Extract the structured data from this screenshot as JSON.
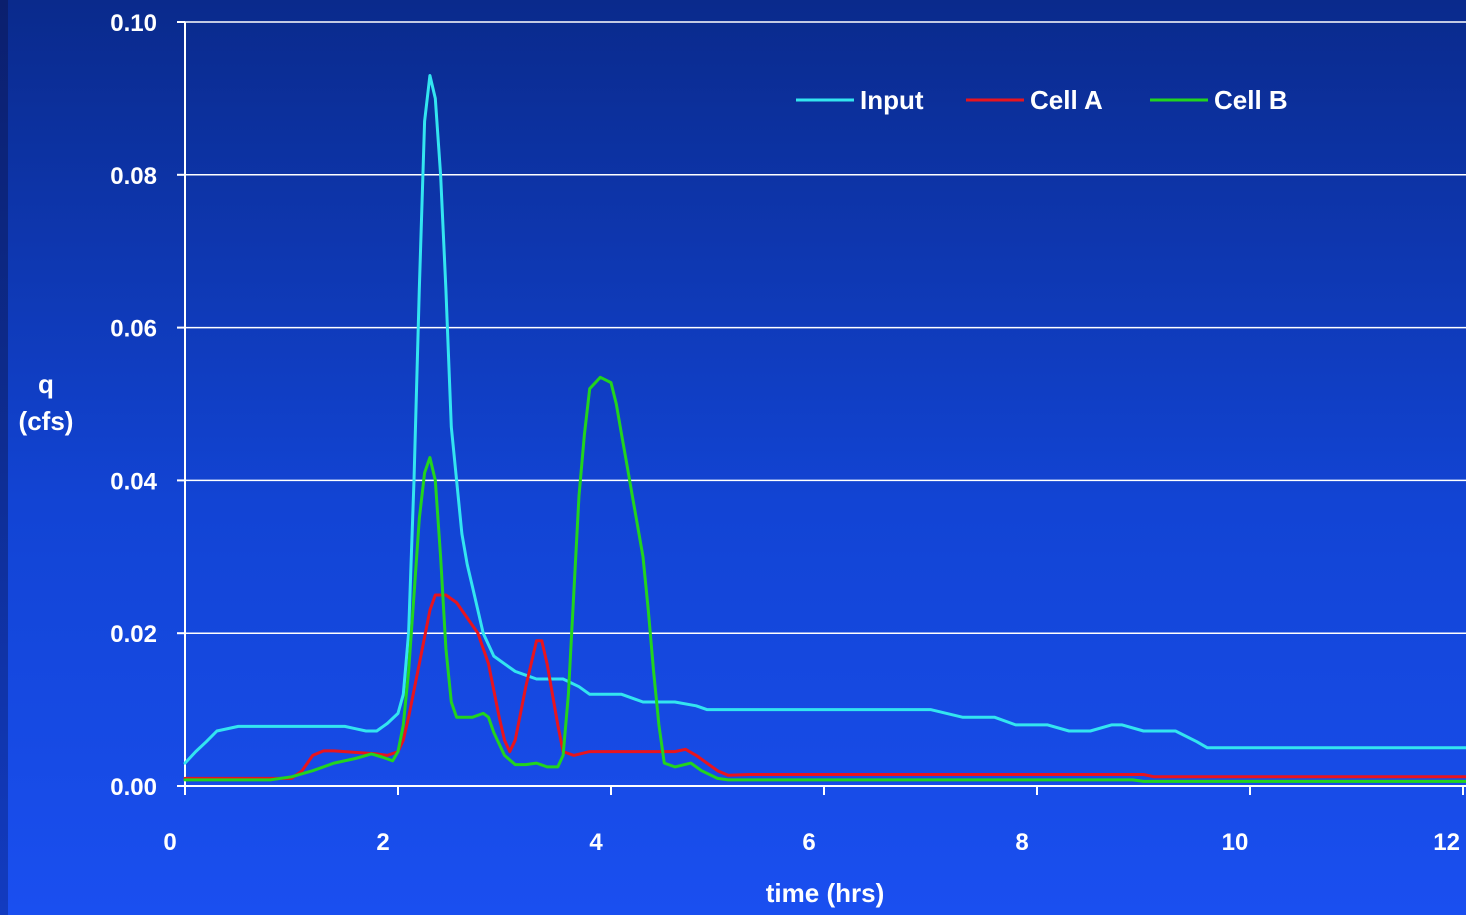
{
  "chart_data": {
    "type": "line",
    "xlabel": "time (hrs)",
    "ylabel_line1": "q",
    "ylabel_line2": "(cfs)",
    "xlim": [
      0,
      12
    ],
    "ylim": [
      0,
      0.1
    ],
    "x_ticks": [
      0,
      2,
      4,
      6,
      8,
      10,
      12
    ],
    "x_tick_labels": [
      "0",
      "2",
      "4",
      "6",
      "8",
      "10",
      "12"
    ],
    "y_ticks": [
      0,
      0.02,
      0.04,
      0.06,
      0.08,
      0.1
    ],
    "y_tick_labels": [
      "0.00",
      "0.02",
      "0.04",
      "0.06",
      "0.08",
      "0.10"
    ],
    "grid": "horizontal",
    "legend_position": "top-right",
    "series": [
      {
        "name": "Input",
        "color": "#33e5f0",
        "points": [
          [
            0,
            0.003
          ],
          [
            0.1,
            0.0045
          ],
          [
            0.2,
            0.0058
          ],
          [
            0.3,
            0.0072
          ],
          [
            0.5,
            0.0078
          ],
          [
            1.0,
            0.0078
          ],
          [
            1.5,
            0.0078
          ],
          [
            1.6,
            0.0075
          ],
          [
            1.7,
            0.0072
          ],
          [
            1.8,
            0.0072
          ],
          [
            1.9,
            0.0082
          ],
          [
            2.0,
            0.0095
          ],
          [
            2.05,
            0.012
          ],
          [
            2.1,
            0.02
          ],
          [
            2.15,
            0.04
          ],
          [
            2.2,
            0.065
          ],
          [
            2.25,
            0.087
          ],
          [
            2.3,
            0.093
          ],
          [
            2.35,
            0.09
          ],
          [
            2.4,
            0.08
          ],
          [
            2.45,
            0.065
          ],
          [
            2.5,
            0.047
          ],
          [
            2.55,
            0.04
          ],
          [
            2.6,
            0.033
          ],
          [
            2.65,
            0.029
          ],
          [
            2.7,
            0.026
          ],
          [
            2.8,
            0.02
          ],
          [
            2.9,
            0.017
          ],
          [
            3.0,
            0.016
          ],
          [
            3.1,
            0.015
          ],
          [
            3.2,
            0.0145
          ],
          [
            3.3,
            0.014
          ],
          [
            3.55,
            0.014
          ],
          [
            3.7,
            0.013
          ],
          [
            3.8,
            0.012
          ],
          [
            4.1,
            0.012
          ],
          [
            4.3,
            0.011
          ],
          [
            4.6,
            0.011
          ],
          [
            4.8,
            0.0105
          ],
          [
            4.9,
            0.01
          ],
          [
            7.0,
            0.01
          ],
          [
            7.3,
            0.009
          ],
          [
            7.6,
            0.009
          ],
          [
            7.8,
            0.008
          ],
          [
            8.1,
            0.008
          ],
          [
            8.3,
            0.0072
          ],
          [
            8.5,
            0.0072
          ],
          [
            8.7,
            0.008
          ],
          [
            8.8,
            0.008
          ],
          [
            9.0,
            0.0072
          ],
          [
            9.3,
            0.0072
          ],
          [
            9.5,
            0.0058
          ],
          [
            9.6,
            0.005
          ],
          [
            9.7,
            0.005
          ],
          [
            12.2,
            0.005
          ]
        ]
      },
      {
        "name": "Cell A",
        "color": "#e8141e",
        "points": [
          [
            0,
            0.001
          ],
          [
            0.8,
            0.001
          ],
          [
            1.0,
            0.001
          ],
          [
            1.1,
            0.002
          ],
          [
            1.2,
            0.004
          ],
          [
            1.3,
            0.0046
          ],
          [
            1.4,
            0.0046
          ],
          [
            1.8,
            0.0042
          ],
          [
            1.9,
            0.004
          ],
          [
            2.0,
            0.0045
          ],
          [
            2.05,
            0.006
          ],
          [
            2.1,
            0.009
          ],
          [
            2.2,
            0.016
          ],
          [
            2.3,
            0.023
          ],
          [
            2.35,
            0.025
          ],
          [
            2.45,
            0.025
          ],
          [
            2.55,
            0.024
          ],
          [
            2.65,
            0.022
          ],
          [
            2.75,
            0.02
          ],
          [
            2.85,
            0.016
          ],
          [
            2.95,
            0.009
          ],
          [
            3.0,
            0.006
          ],
          [
            3.05,
            0.0045
          ],
          [
            3.1,
            0.006
          ],
          [
            3.2,
            0.013
          ],
          [
            3.3,
            0.019
          ],
          [
            3.35,
            0.019
          ],
          [
            3.4,
            0.016
          ],
          [
            3.5,
            0.008
          ],
          [
            3.55,
            0.0045
          ],
          [
            3.65,
            0.004
          ],
          [
            3.8,
            0.0045
          ],
          [
            4.0,
            0.0045
          ],
          [
            4.6,
            0.0045
          ],
          [
            4.7,
            0.0048
          ],
          [
            4.8,
            0.004
          ],
          [
            4.9,
            0.003
          ],
          [
            5.0,
            0.002
          ],
          [
            5.1,
            0.0014
          ],
          [
            5.3,
            0.0015
          ],
          [
            9.0,
            0.0015
          ],
          [
            9.1,
            0.0012
          ],
          [
            12.2,
            0.0012
          ]
        ]
      },
      {
        "name": "Cell B",
        "color": "#22d41e",
        "points": [
          [
            0,
            0.0008
          ],
          [
            0.8,
            0.0008
          ],
          [
            1.0,
            0.0012
          ],
          [
            1.2,
            0.002
          ],
          [
            1.4,
            0.003
          ],
          [
            1.6,
            0.0036
          ],
          [
            1.75,
            0.0042
          ],
          [
            1.85,
            0.0038
          ],
          [
            1.95,
            0.0033
          ],
          [
            2.0,
            0.0045
          ],
          [
            2.05,
            0.008
          ],
          [
            2.1,
            0.015
          ],
          [
            2.15,
            0.025
          ],
          [
            2.2,
            0.035
          ],
          [
            2.25,
            0.041
          ],
          [
            2.3,
            0.043
          ],
          [
            2.35,
            0.04
          ],
          [
            2.4,
            0.03
          ],
          [
            2.45,
            0.018
          ],
          [
            2.5,
            0.011
          ],
          [
            2.55,
            0.009
          ],
          [
            2.7,
            0.009
          ],
          [
            2.8,
            0.0095
          ],
          [
            2.85,
            0.009
          ],
          [
            2.9,
            0.007
          ],
          [
            3.0,
            0.004
          ],
          [
            3.1,
            0.0028
          ],
          [
            3.2,
            0.0028
          ],
          [
            3.3,
            0.003
          ],
          [
            3.4,
            0.0025
          ],
          [
            3.5,
            0.0025
          ],
          [
            3.55,
            0.004
          ],
          [
            3.6,
            0.012
          ],
          [
            3.65,
            0.025
          ],
          [
            3.7,
            0.038
          ],
          [
            3.75,
            0.046
          ],
          [
            3.8,
            0.052
          ],
          [
            3.9,
            0.0535
          ],
          [
            4.0,
            0.0528
          ],
          [
            4.05,
            0.05
          ],
          [
            4.1,
            0.046
          ],
          [
            4.15,
            0.042
          ],
          [
            4.2,
            0.038
          ],
          [
            4.3,
            0.03
          ],
          [
            4.35,
            0.023
          ],
          [
            4.4,
            0.015
          ],
          [
            4.45,
            0.008
          ],
          [
            4.5,
            0.003
          ],
          [
            4.6,
            0.0025
          ],
          [
            4.75,
            0.003
          ],
          [
            4.85,
            0.002
          ],
          [
            5.0,
            0.001
          ],
          [
            5.1,
            0.0008
          ],
          [
            8.9,
            0.0008
          ],
          [
            9.0,
            0.0006
          ],
          [
            12.2,
            0.0006
          ]
        ]
      }
    ]
  }
}
